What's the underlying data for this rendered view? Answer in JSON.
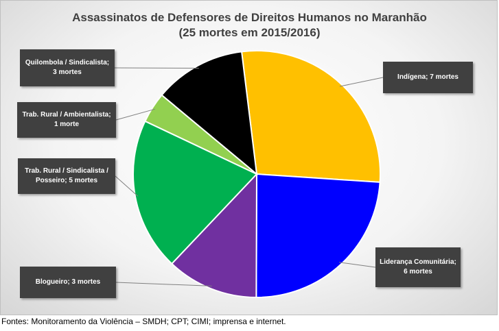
{
  "chart_data": {
    "type": "pie",
    "title_lines": [
      "Assassinatos de Defensores de Direitos Humanos no Maranhão",
      "(25 mortes em 2015/2016)"
    ],
    "slices": [
      {
        "category": "Indígena",
        "value": 7,
        "label": "Indígena; 7 mortes",
        "color": "#FFC000"
      },
      {
        "category": "Liderança Comunitária",
        "value": 6,
        "label": "Liderança Comunitária; 6 mortes",
        "color": "#0000FF"
      },
      {
        "category": "Blogueiro",
        "value": 3,
        "label": "Blogueiro; 3 mortes",
        "color": "#7030A0"
      },
      {
        "category": "Trab. Rural / Sindicalista / Posseiro",
        "value": 5,
        "label": "Trab. Rural / Sindicalista / Posseiro; 5 mortes",
        "color": "#00B050"
      },
      {
        "category": "Trab. Rural / Ambientalista",
        "value": 1,
        "label": "Trab. Rural / Ambientalista; 1 morte",
        "color": "#92D050"
      },
      {
        "category": "Quilombola / Sindicalista",
        "value": 3,
        "label": "Quilombola / Sindicalista; 3 mortes",
        "color": "#000000"
      }
    ]
  },
  "footnote": "Fontes: Monitoramento da Violência – SMDH; CPT; CIMI; imprensa e internet."
}
